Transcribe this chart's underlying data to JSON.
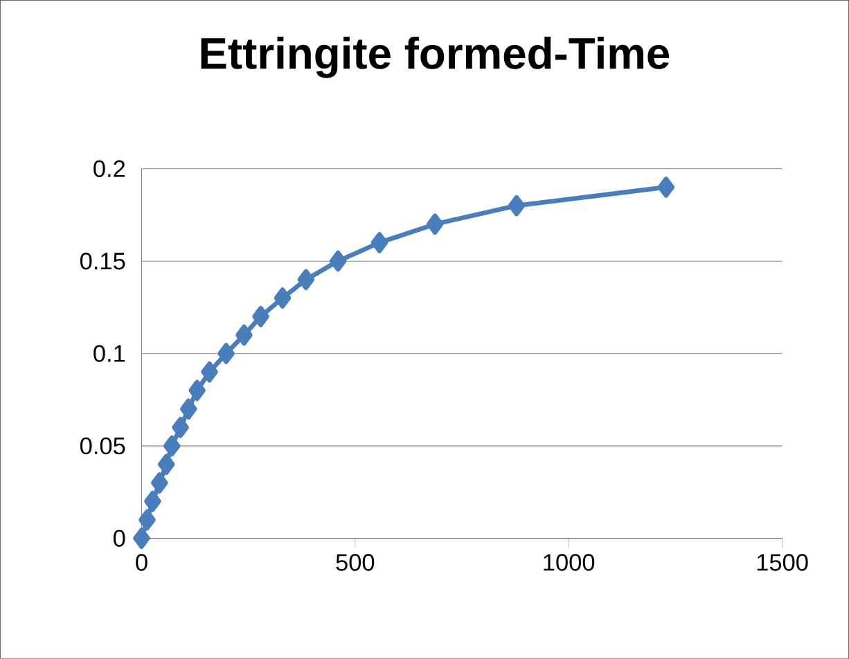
{
  "chart_data": {
    "type": "line",
    "title": "Ettringite formed-Time",
    "x": [
      0,
      13,
      26,
      42,
      58,
      71,
      91,
      110,
      130,
      159,
      198,
      240,
      279,
      330,
      385,
      460,
      557,
      687,
      878,
      1228
    ],
    "values": [
      0,
      0.01,
      0.02,
      0.03,
      0.04,
      0.05,
      0.06,
      0.07,
      0.08,
      0.09,
      0.1,
      0.11,
      0.12,
      0.13,
      0.14,
      0.15,
      0.16,
      0.17,
      0.18,
      0.19
    ],
    "color": "#4a7ebb",
    "marker": "diamond",
    "line_style": "solid",
    "grid": "y",
    "xlim": [
      0,
      1500
    ],
    "xticks": [
      0,
      500,
      1000,
      1500
    ],
    "ylim": [
      0,
      0.2
    ],
    "yticks": [
      0,
      0.05,
      0.1,
      0.15,
      0.2
    ]
  }
}
